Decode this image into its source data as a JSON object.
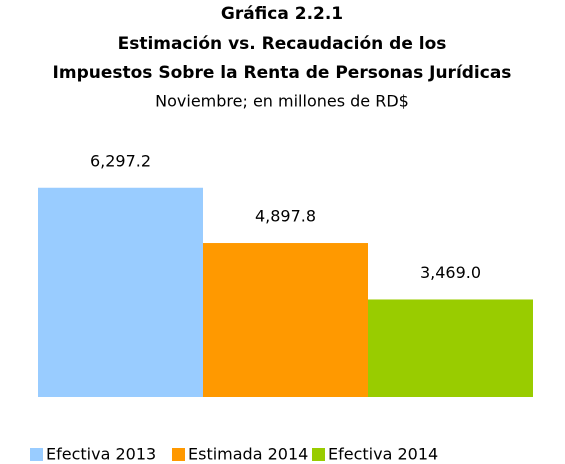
{
  "chart_data": {
    "type": "bar",
    "title": [
      "Gráfica 2.2.1",
      "Estimación vs. Recaudación de los",
      "Impuestos Sobre la Renta de Personas Jurídicas"
    ],
    "subtitle": "Noviembre; en millones de RD$",
    "ylim": [
      1000,
      7000
    ],
    "series": [
      {
        "name": "Efectiva 2013",
        "color": "#99ccff",
        "values": [
          6297.2
        ],
        "value_labels": [
          "6,297.2"
        ]
      },
      {
        "name": "Estimada 2014",
        "color": "#ff9900",
        "values": [
          4897.8
        ],
        "value_labels": [
          "4,897.8"
        ]
      },
      {
        "name": "Efectiva 2014",
        "color": "#99cc00",
        "values": [
          3469.0
        ],
        "value_labels": [
          "3,469.0"
        ]
      }
    ]
  }
}
